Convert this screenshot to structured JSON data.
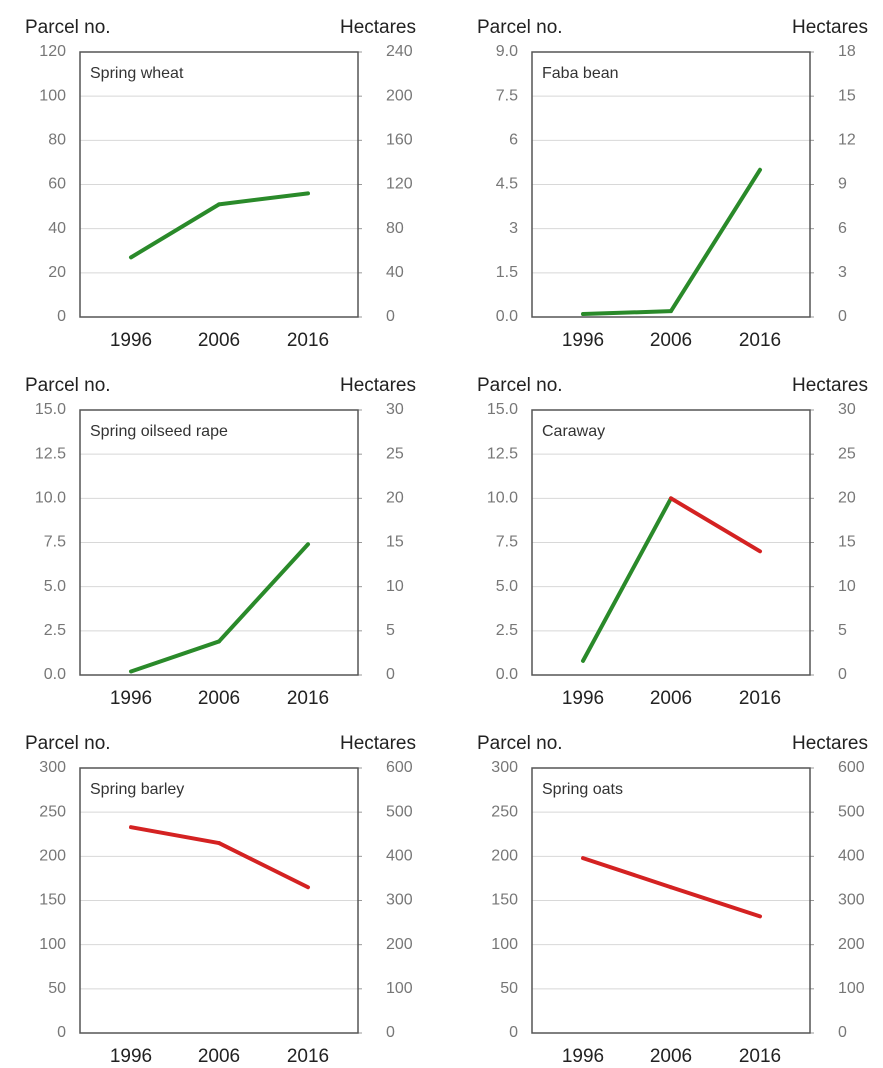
{
  "chart_data": [
    {
      "type": "line",
      "title": "Spring wheat",
      "ylabel": "Parcel no.",
      "y2label": "Hectares",
      "categories": [
        "1996",
        "2006",
        "2016"
      ],
      "values": [
        27,
        51,
        56
      ],
      "color_up": "#2a8a2a",
      "color_down": "#d42222",
      "grid": true,
      "ylim": [
        0,
        120
      ],
      "yticks": [
        0,
        20,
        40,
        60,
        80,
        100,
        120
      ],
      "y2lim": [
        0,
        240
      ],
      "y2ticks": [
        0,
        40,
        80,
        120,
        160,
        200,
        240
      ]
    },
    {
      "type": "line",
      "title": "Faba bean",
      "ylabel": "Parcel no.",
      "y2label": "Hectares",
      "categories": [
        "1996",
        "2006",
        "2016"
      ],
      "values": [
        0.1,
        0.2,
        5.0
      ],
      "color_up": "#2a8a2a",
      "color_down": "#d42222",
      "grid": true,
      "ylim": [
        0,
        9
      ],
      "yticks": [
        {
          "value": 0,
          "label": "0.0"
        },
        1.5,
        3,
        4.5,
        6,
        7.5,
        {
          "value": 9,
          "label": "9.0"
        }
      ],
      "y2lim": [
        0,
        18
      ],
      "y2ticks": [
        0,
        3,
        6,
        9,
        12,
        15,
        18
      ]
    },
    {
      "type": "line",
      "title": "Spring oilseed rape",
      "ylabel": "Parcel no.",
      "y2label": "Hectares",
      "categories": [
        "1996",
        "2006",
        "2016"
      ],
      "values": [
        0.2,
        1.9,
        7.4
      ],
      "color_up": "#2a8a2a",
      "color_down": "#d42222",
      "grid": true,
      "ylim": [
        0,
        15
      ],
      "yticks": [
        {
          "value": 0,
          "label": "0.0"
        },
        2.5,
        {
          "value": 5,
          "label": "5.0"
        },
        7.5,
        {
          "value": 10,
          "label": "10.0"
        },
        12.5,
        {
          "value": 15,
          "label": "15.0"
        }
      ],
      "y2lim": [
        0,
        30
      ],
      "y2ticks": [
        0,
        5,
        10,
        15,
        20,
        25,
        30
      ]
    },
    {
      "type": "line",
      "title": "Caraway",
      "ylabel": "Parcel no.",
      "y2label": "Hectares",
      "categories": [
        "1996",
        "2006",
        "2016"
      ],
      "values": [
        0.8,
        10,
        7
      ],
      "color_up": "#2a8a2a",
      "color_down": "#d42222",
      "grid": true,
      "ylim": [
        0,
        15
      ],
      "yticks": [
        {
          "value": 0,
          "label": "0.0"
        },
        2.5,
        {
          "value": 5,
          "label": "5.0"
        },
        7.5,
        {
          "value": 10,
          "label": "10.0"
        },
        12.5,
        {
          "value": 15,
          "label": "15.0"
        }
      ],
      "y2lim": [
        0,
        30
      ],
      "y2ticks": [
        0,
        5,
        10,
        15,
        20,
        25,
        30
      ]
    },
    {
      "type": "line",
      "title": "Spring barley",
      "ylabel": "Parcel no.",
      "y2label": "Hectares",
      "categories": [
        "1996",
        "2006",
        "2016"
      ],
      "values": [
        233,
        215,
        165
      ],
      "color_up": "#2a8a2a",
      "color_down": "#d42222",
      "grid": true,
      "ylim": [
        0,
        300
      ],
      "yticks": [
        0,
        50,
        100,
        150,
        200,
        250,
        300
      ],
      "y2lim": [
        0,
        600
      ],
      "y2ticks": [
        0,
        100,
        200,
        300,
        400,
        500,
        600
      ]
    },
    {
      "type": "line",
      "title": "Spring oats",
      "ylabel": "Parcel no.",
      "y2label": "Hectares",
      "categories": [
        "1996",
        "2006",
        "2016"
      ],
      "values": [
        198,
        165,
        132
      ],
      "color_up": "#2a8a2a",
      "color_down": "#d42222",
      "grid": true,
      "ylim": [
        0,
        300
      ],
      "yticks": [
        0,
        50,
        100,
        150,
        200,
        250,
        300
      ],
      "y2lim": [
        0,
        600
      ],
      "y2ticks": [
        0,
        100,
        200,
        300,
        400,
        500,
        600
      ]
    }
  ]
}
